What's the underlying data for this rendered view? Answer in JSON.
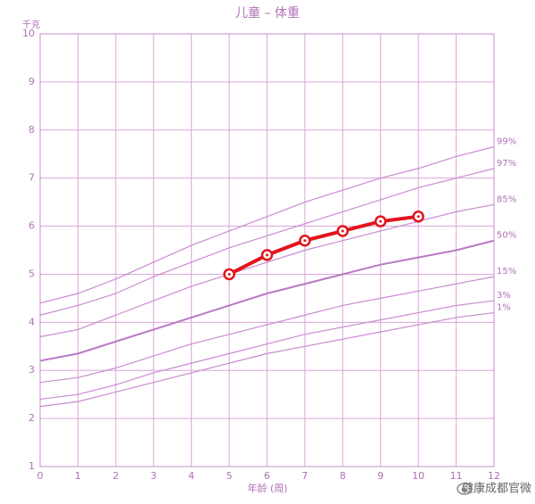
{
  "chart_data": {
    "type": "line",
    "title": "儿童 – 体重",
    "ylabel": "千克",
    "xlabel": "年龄 (周)",
    "watermark": "健康成都官微",
    "x": [
      0,
      1,
      2,
      3,
      4,
      5,
      6,
      7,
      8,
      9,
      10,
      11,
      12
    ],
    "xlim": [
      0,
      12
    ],
    "xticks": [
      0,
      1,
      2,
      3,
      4,
      5,
      6,
      7,
      8,
      9,
      10,
      11,
      12
    ],
    "ylim": [
      1,
      10
    ],
    "yticks": [
      1,
      2,
      3,
      4,
      5,
      6,
      7,
      8,
      9,
      10
    ],
    "grid": true,
    "series": [
      {
        "name": "99%",
        "color": "#c98bd0",
        "values": [
          4.4,
          4.6,
          4.9,
          5.25,
          5.6,
          5.9,
          6.2,
          6.5,
          6.75,
          7.0,
          7.2,
          7.45,
          7.65
        ]
      },
      {
        "name": "97%",
        "color": "#c98bd0",
        "values": [
          4.15,
          4.35,
          4.6,
          4.95,
          5.25,
          5.55,
          5.8,
          6.05,
          6.3,
          6.55,
          6.8,
          7.0,
          7.2
        ]
      },
      {
        "name": "85%",
        "color": "#c98bd0",
        "values": [
          3.7,
          3.85,
          4.15,
          4.45,
          4.75,
          5.0,
          5.25,
          5.5,
          5.7,
          5.9,
          6.1,
          6.3,
          6.45
        ]
      },
      {
        "name": "50%",
        "color": "#b978c4",
        "values": [
          3.2,
          3.35,
          3.6,
          3.85,
          4.1,
          4.35,
          4.6,
          4.8,
          5.0,
          5.2,
          5.35,
          5.5,
          5.7
        ]
      },
      {
        "name": "15%",
        "color": "#c98bd0",
        "values": [
          2.75,
          2.85,
          3.05,
          3.3,
          3.55,
          3.75,
          3.95,
          4.15,
          4.35,
          4.5,
          4.65,
          4.8,
          4.95
        ]
      },
      {
        "name": "3%",
        "color": "#c98bd0",
        "values": [
          2.4,
          2.5,
          2.7,
          2.95,
          3.15,
          3.35,
          3.55,
          3.75,
          3.9,
          4.05,
          4.2,
          4.35,
          4.45
        ]
      },
      {
        "name": "1%",
        "color": "#c98bd0",
        "values": [
          2.25,
          2.35,
          2.55,
          2.75,
          2.95,
          3.15,
          3.35,
          3.5,
          3.65,
          3.8,
          3.95,
          4.1,
          4.2
        ]
      }
    ],
    "child": {
      "color": "#e3141c",
      "values": [
        null,
        null,
        null,
        null,
        null,
        5.0,
        5.4,
        5.7,
        5.9,
        6.1,
        6.2,
        null,
        null
      ]
    }
  }
}
